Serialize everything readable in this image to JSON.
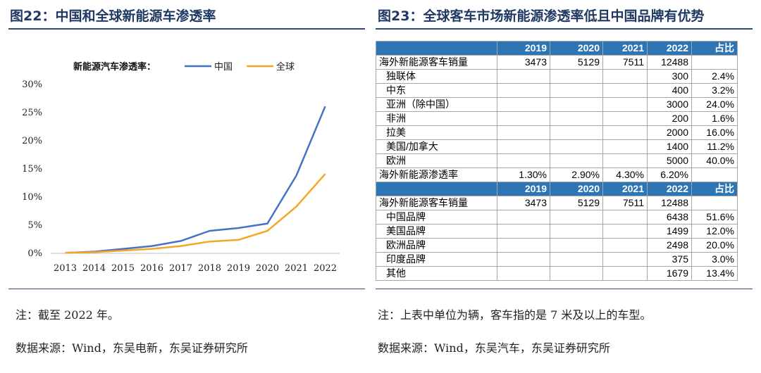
{
  "left_panel": {
    "title": "图22：中国和全球新能源车渗透率",
    "note": "注：截至 2022 年。",
    "source": "数据来源：Wind，东吴电新，东吴证券研究所"
  },
  "right_panel": {
    "title": "图23：全球客车市场新能源渗透率低且中国品牌有优势",
    "note": "注：上表中单位为辆，客车指的是 7 米及以上的车型。",
    "source": "数据来源：Wind，东吴汽车，东吴证券研究所"
  },
  "chart_data": {
    "type": "line",
    "title": "",
    "legend_title": "新能源汽车渗透率：",
    "legend_position": "top",
    "x": [
      "2013",
      "2014",
      "2015",
      "2016",
      "2017",
      "2018",
      "2019",
      "2020",
      "2021",
      "2022"
    ],
    "y_ticks": [
      "0%",
      "5%",
      "10%",
      "15%",
      "20%",
      "25%",
      "30%"
    ],
    "ylim": [
      0,
      30
    ],
    "grid": false,
    "series": [
      {
        "name": "中国",
        "color": "#4472c4",
        "values": [
          0.1,
          0.3,
          0.8,
          1.3,
          2.2,
          4.0,
          4.5,
          5.3,
          13.8,
          26.1
        ]
      },
      {
        "name": "全球",
        "color": "#f5a623",
        "values": [
          0.1,
          0.2,
          0.5,
          0.8,
          1.3,
          2.1,
          2.4,
          4.0,
          8.3,
          14.1
        ]
      }
    ]
  },
  "table": {
    "sections": [
      {
        "header": [
          "",
          "2019",
          "2020",
          "2021",
          "2022",
          "占比"
        ],
        "rows": [
          {
            "label": "海外新能源客车销量",
            "indent": false,
            "cells": [
              "3473",
              "5129",
              "7511",
              "12488",
              ""
            ]
          },
          {
            "label": "独联体",
            "indent": true,
            "cells": [
              "",
              "",
              "",
              "300",
              "2.4%"
            ]
          },
          {
            "label": "中东",
            "indent": true,
            "cells": [
              "",
              "",
              "",
              "400",
              "3.2%"
            ]
          },
          {
            "label": "亚洲（除中国）",
            "indent": true,
            "cells": [
              "",
              "",
              "",
              "3000",
              "24.0%"
            ]
          },
          {
            "label": "非洲",
            "indent": true,
            "cells": [
              "",
              "",
              "",
              "200",
              "1.6%"
            ]
          },
          {
            "label": "拉美",
            "indent": true,
            "cells": [
              "",
              "",
              "",
              "2000",
              "16.0%"
            ]
          },
          {
            "label": "美国/加拿大",
            "indent": true,
            "cells": [
              "",
              "",
              "",
              "1400",
              "11.2%"
            ]
          },
          {
            "label": "欧洲",
            "indent": true,
            "cells": [
              "",
              "",
              "",
              "5000",
              "40.0%"
            ]
          },
          {
            "label": "海外新能源渗透率",
            "indent": false,
            "cells": [
              "1.30%",
              "2.90%",
              "4.30%",
              "6.20%",
              ""
            ]
          }
        ]
      },
      {
        "header": [
          "",
          "2019",
          "2020",
          "2021",
          "2022",
          "占比"
        ],
        "rows": [
          {
            "label": "海外新能源客车销量",
            "indent": false,
            "cells": [
              "3473",
              "5129",
              "7511",
              "12488",
              ""
            ]
          },
          {
            "label": "中国品牌",
            "indent": true,
            "cells": [
              "",
              "",
              "",
              "6438",
              "51.6%"
            ]
          },
          {
            "label": "美国品牌",
            "indent": true,
            "cells": [
              "",
              "",
              "",
              "1499",
              "12.0%"
            ]
          },
          {
            "label": "欧洲品牌",
            "indent": true,
            "cells": [
              "",
              "",
              "",
              "2498",
              "20.0%"
            ]
          },
          {
            "label": "印度品牌",
            "indent": true,
            "cells": [
              "",
              "",
              "",
              "375",
              "3.0%"
            ]
          },
          {
            "label": "其他",
            "indent": true,
            "cells": [
              "",
              "",
              "",
              "1679",
              "13.4%"
            ]
          }
        ]
      }
    ]
  }
}
